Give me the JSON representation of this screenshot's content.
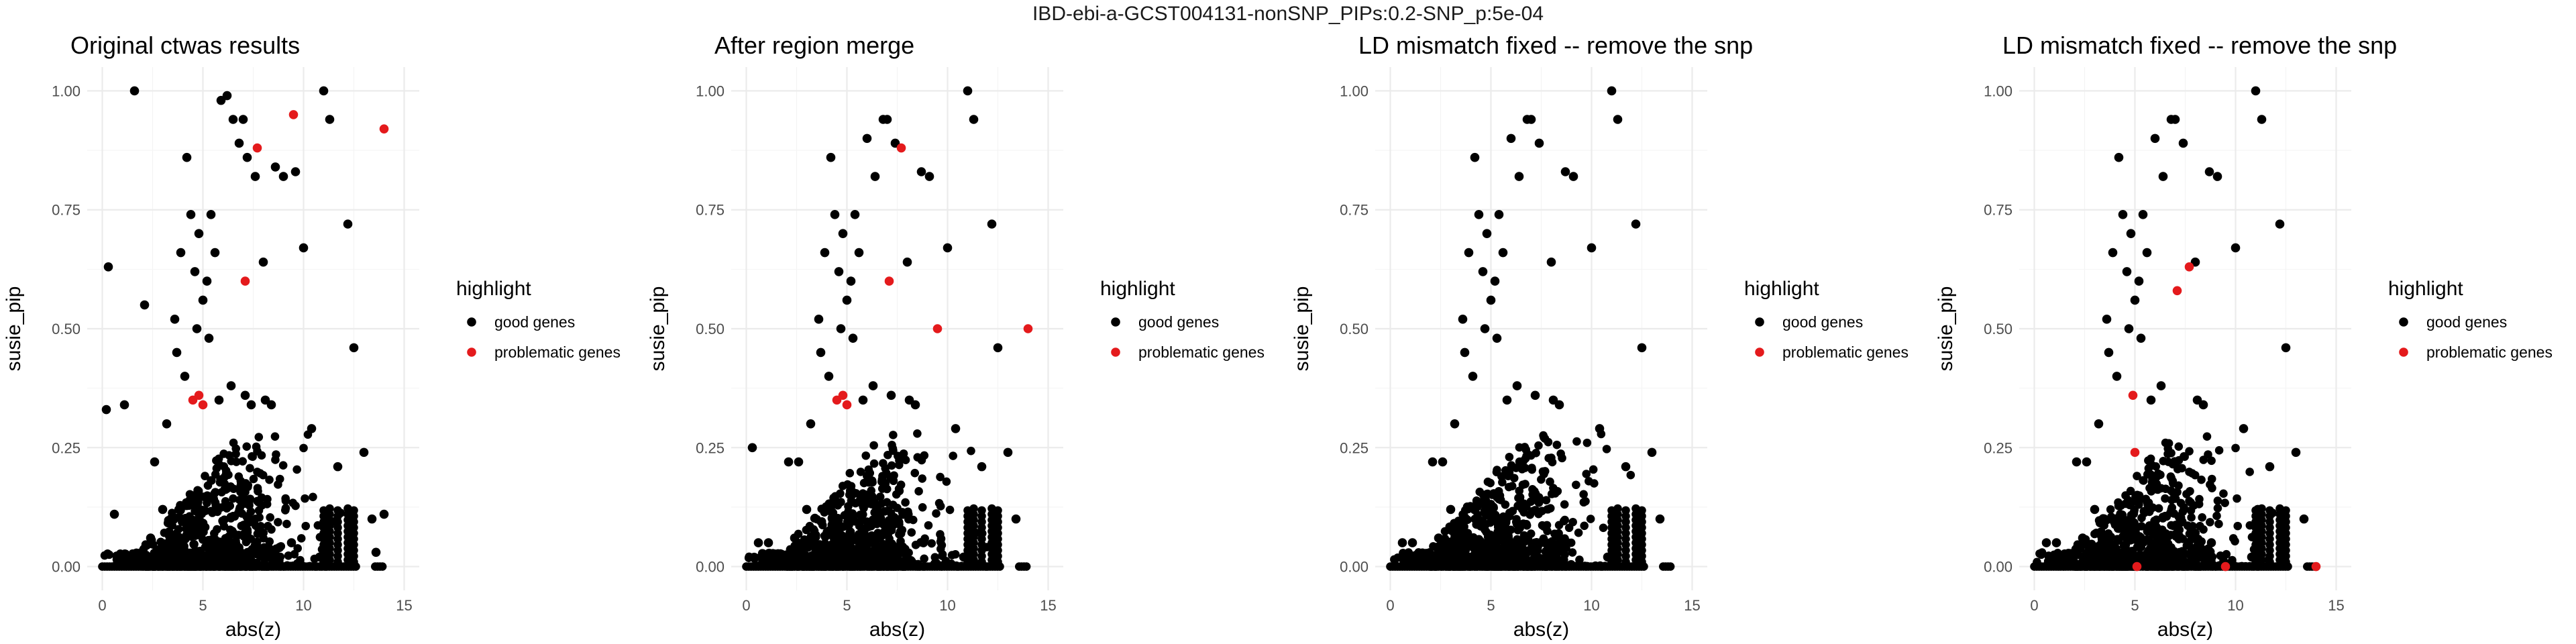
{
  "figure_title": "IBD-ebi-a-GCST004131-nonSNP_PIPs:0.2-SNP_p:5e-04",
  "colors": {
    "good": "#000000",
    "problematic": "#e41a1c",
    "grid": "#ebebeb"
  },
  "chart_data": [
    {
      "type": "scatter",
      "title": "Original ctwas results",
      "xlabel": "abs(z)",
      "ylabel": "susie_pip",
      "xlim": [
        0,
        15
      ],
      "ylim": [
        0,
        1
      ],
      "xticks": [
        "0",
        "5",
        "10",
        "15"
      ],
      "yticks": [
        "0.00",
        "0.25",
        "0.50",
        "0.75",
        "1.00"
      ],
      "legend": {
        "title": "highlight",
        "entries": [
          "good genes",
          "problematic genes"
        ],
        "position": "right"
      },
      "series": [
        {
          "name": "good genes",
          "x": [
            0.3,
            1.1,
            1.6,
            2.1,
            2.6,
            3.2,
            3.6,
            3.9,
            4.2,
            4.4,
            4.6,
            4.8,
            5.0,
            5.2,
            5.4,
            5.6,
            5.9,
            6.2,
            6.5,
            6.8,
            7.0,
            7.2,
            7.6,
            8.0,
            8.4,
            8.6,
            9.0,
            9.6,
            10.0,
            10.4,
            11.0,
            11.3,
            11.7,
            12.2,
            12.5,
            13.0,
            13.4,
            14.0,
            0.2,
            0.6,
            2.4,
            3.0,
            3.7,
            4.1,
            4.7,
            5.3,
            5.8,
            6.4,
            7.1,
            7.4,
            8.1,
            8.8,
            9.4,
            10.8,
            12.3,
            13.6
          ],
          "y": [
            0.63,
            0.34,
            1.0,
            0.55,
            0.22,
            0.3,
            0.52,
            0.66,
            0.86,
            0.74,
            0.62,
            0.7,
            0.56,
            0.6,
            0.74,
            0.66,
            0.98,
            0.99,
            0.94,
            0.89,
            0.94,
            0.86,
            0.82,
            0.64,
            0.34,
            0.84,
            0.82,
            0.83,
            0.67,
            0.29,
            1.0,
            0.94,
            0.21,
            0.72,
            0.46,
            0.24,
            0.1,
            0.11,
            0.33,
            0.11,
            0.06,
            0.12,
            0.45,
            0.4,
            0.5,
            0.48,
            0.35,
            0.38,
            0.36,
            0.34,
            0.35,
            0.04,
            0.05,
            0.02,
            0.09,
            0.03
          ]
        },
        {
          "name": "problematic genes",
          "x": [
            4.5,
            4.8,
            5.0,
            7.1,
            7.7,
            9.5,
            14.0
          ],
          "y": [
            0.35,
            0.36,
            0.34,
            0.6,
            0.88,
            0.95,
            0.92
          ]
        }
      ]
    },
    {
      "type": "scatter",
      "title": "After region merge",
      "xlabel": "abs(z)",
      "ylabel": "susie_pip",
      "xlim": [
        0,
        15
      ],
      "ylim": [
        0,
        1
      ],
      "xticks": [
        "0",
        "5",
        "10",
        "15"
      ],
      "yticks": [
        "0.00",
        "0.25",
        "0.50",
        "0.75",
        "1.00"
      ],
      "legend": {
        "title": "highlight",
        "entries": [
          "good genes",
          "problematic genes"
        ],
        "position": "right"
      },
      "series": [
        {
          "name": "good genes",
          "x": [
            0.3,
            1.1,
            2.1,
            2.6,
            3.2,
            3.6,
            3.9,
            4.2,
            4.4,
            4.6,
            4.8,
            5.0,
            5.2,
            5.4,
            5.6,
            6.0,
            6.4,
            6.8,
            7.0,
            7.4,
            8.0,
            8.4,
            8.7,
            9.1,
            10.0,
            10.4,
            11.0,
            11.3,
            11.7,
            12.2,
            12.5,
            13.0,
            13.4,
            0.6,
            2.4,
            3.0,
            3.7,
            4.1,
            4.7,
            5.3,
            5.8,
            6.3,
            7.2,
            8.1,
            8.8,
            10.8,
            12.3
          ],
          "y": [
            0.25,
            0.05,
            0.22,
            0.22,
            0.3,
            0.52,
            0.66,
            0.86,
            0.74,
            0.62,
            0.7,
            0.56,
            0.6,
            0.74,
            0.66,
            0.9,
            0.82,
            0.94,
            0.94,
            0.89,
            0.64,
            0.34,
            0.83,
            0.82,
            0.67,
            0.29,
            1.0,
            0.94,
            0.21,
            0.72,
            0.46,
            0.24,
            0.1,
            0.05,
            0.06,
            0.12,
            0.45,
            0.4,
            0.5,
            0.48,
            0.35,
            0.38,
            0.36,
            0.35,
            0.05,
            0.02,
            0.09
          ]
        },
        {
          "name": "problematic genes",
          "x": [
            4.5,
            4.8,
            5.0,
            7.1,
            7.7,
            9.5,
            14.0
          ],
          "y": [
            0.35,
            0.36,
            0.34,
            0.6,
            0.88,
            0.5,
            0.5
          ]
        }
      ]
    },
    {
      "type": "scatter",
      "title": "LD mismatch fixed -- remove the snp",
      "xlabel": "abs(z)",
      "ylabel": "susie_pip",
      "xlim": [
        0,
        15
      ],
      "ylim": [
        0,
        1
      ],
      "xticks": [
        "0",
        "5",
        "10",
        "15"
      ],
      "yticks": [
        "0.00",
        "0.25",
        "0.50",
        "0.75",
        "1.00"
      ],
      "legend": {
        "title": "highlight",
        "entries": [
          "good genes",
          "problematic genes"
        ],
        "position": "right"
      },
      "series": [
        {
          "name": "good genes",
          "x": [
            1.1,
            2.1,
            2.6,
            3.2,
            3.6,
            3.9,
            4.2,
            4.4,
            4.6,
            4.8,
            5.0,
            5.2,
            5.4,
            5.6,
            6.0,
            6.4,
            6.8,
            7.0,
            7.4,
            8.0,
            8.4,
            8.7,
            9.1,
            10.0,
            10.4,
            11.0,
            11.3,
            11.7,
            12.2,
            12.5,
            13.0,
            13.4,
            0.6,
            2.4,
            3.0,
            3.7,
            4.1,
            4.7,
            5.3,
            5.8,
            6.3,
            7.2,
            8.1,
            8.8,
            10.8,
            12.3
          ],
          "y": [
            0.05,
            0.22,
            0.22,
            0.3,
            0.52,
            0.66,
            0.86,
            0.74,
            0.62,
            0.7,
            0.56,
            0.6,
            0.74,
            0.66,
            0.9,
            0.82,
            0.94,
            0.94,
            0.89,
            0.64,
            0.34,
            0.83,
            0.82,
            0.67,
            0.29,
            1.0,
            0.94,
            0.21,
            0.72,
            0.46,
            0.24,
            0.1,
            0.05,
            0.06,
            0.12,
            0.45,
            0.4,
            0.5,
            0.48,
            0.35,
            0.38,
            0.36,
            0.35,
            0.05,
            0.02,
            0.09
          ]
        },
        {
          "name": "problematic genes",
          "x": [],
          "y": []
        }
      ]
    },
    {
      "type": "scatter",
      "title": "LD mismatch fixed -- remove the snp",
      "xlabel": "abs(z)",
      "ylabel": "susie_pip",
      "xlim": [
        0,
        15
      ],
      "ylim": [
        0,
        1
      ],
      "xticks": [
        "0",
        "5",
        "10",
        "15"
      ],
      "yticks": [
        "0.00",
        "0.25",
        "0.50",
        "0.75",
        "1.00"
      ],
      "legend": {
        "title": "highlight",
        "entries": [
          "good genes",
          "problematic genes"
        ],
        "position": "right"
      },
      "series": [
        {
          "name": "good genes",
          "x": [
            1.1,
            2.1,
            2.6,
            3.2,
            3.6,
            3.9,
            4.2,
            4.4,
            4.6,
            4.8,
            5.0,
            5.2,
            5.4,
            5.6,
            6.0,
            6.4,
            6.8,
            7.0,
            7.4,
            8.0,
            8.4,
            8.7,
            9.1,
            10.0,
            10.4,
            11.0,
            11.3,
            11.7,
            12.2,
            12.5,
            13.0,
            13.4,
            0.6,
            2.4,
            3.0,
            3.7,
            4.1,
            4.7,
            5.3,
            5.8,
            6.3,
            8.1,
            8.8,
            10.8,
            12.3
          ],
          "y": [
            0.05,
            0.22,
            0.22,
            0.3,
            0.52,
            0.66,
            0.86,
            0.74,
            0.62,
            0.7,
            0.56,
            0.6,
            0.74,
            0.66,
            0.9,
            0.82,
            0.94,
            0.94,
            0.89,
            0.64,
            0.34,
            0.83,
            0.82,
            0.67,
            0.29,
            1.0,
            0.94,
            0.21,
            0.72,
            0.46,
            0.24,
            0.1,
            0.05,
            0.06,
            0.12,
            0.45,
            0.4,
            0.5,
            0.48,
            0.35,
            0.38,
            0.35,
            0.05,
            0.02,
            0.09
          ]
        },
        {
          "name": "problematic genes",
          "x": [
            4.9,
            5.0,
            5.1,
            7.1,
            7.7,
            9.5,
            14.0
          ],
          "y": [
            0.36,
            0.24,
            0.0,
            0.58,
            0.63,
            0.0,
            0.0
          ]
        }
      ]
    }
  ]
}
